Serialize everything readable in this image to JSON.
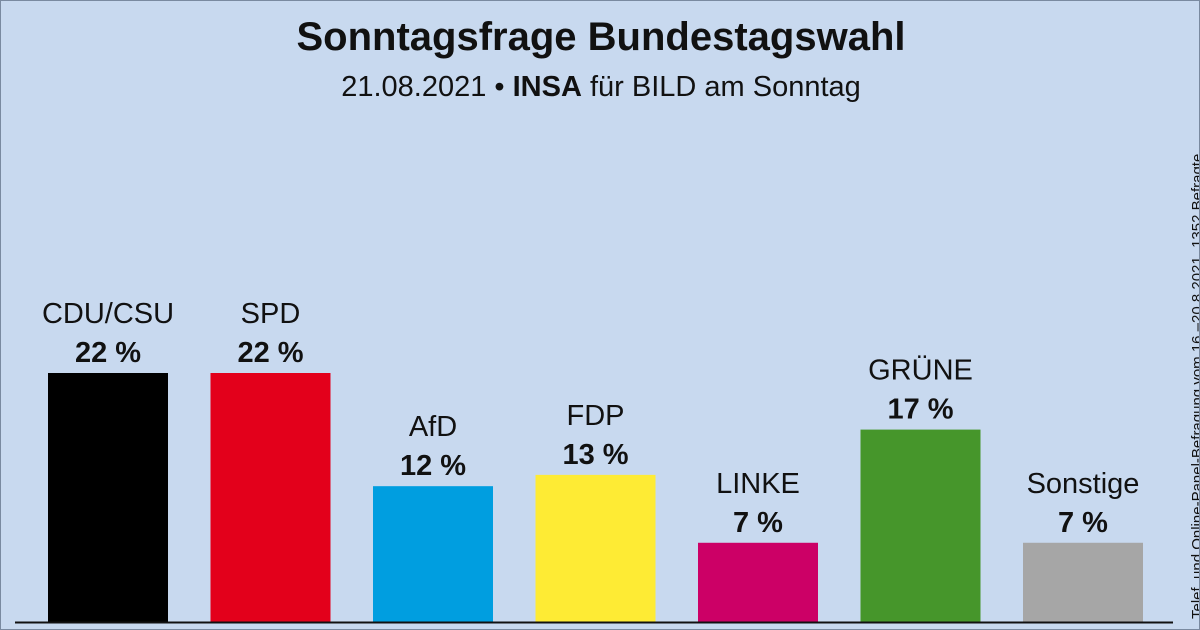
{
  "chart_data": {
    "type": "bar",
    "title": "Sonntagsfrage Bundestagswahl",
    "subtitle": {
      "date": "21.08.2021",
      "separator": "•",
      "institute": "INSA",
      "client": "für BILD am Sonntag"
    },
    "side_note": "Telef. und Online-Panel-Befragung vom 16.–20.8.2021, 1352 Befragte",
    "unit": "%",
    "categories": [
      "CDU/CSU",
      "SPD",
      "AfD",
      "FDP",
      "LINKE",
      "GRÜNE",
      "Sonstige"
    ],
    "values": [
      22,
      22,
      12,
      13,
      7,
      17,
      7
    ],
    "value_labels": [
      "22 %",
      "22 %",
      "12 %",
      "13 %",
      "7 %",
      "17 %",
      "7 %"
    ],
    "colors": [
      "#000000",
      "#e3001b",
      "#009ee0",
      "#feeb34",
      "#cc0066",
      "#46962b",
      "#a6a6a6"
    ],
    "ylim": [
      0,
      28
    ],
    "grid": false,
    "legend": "none"
  }
}
